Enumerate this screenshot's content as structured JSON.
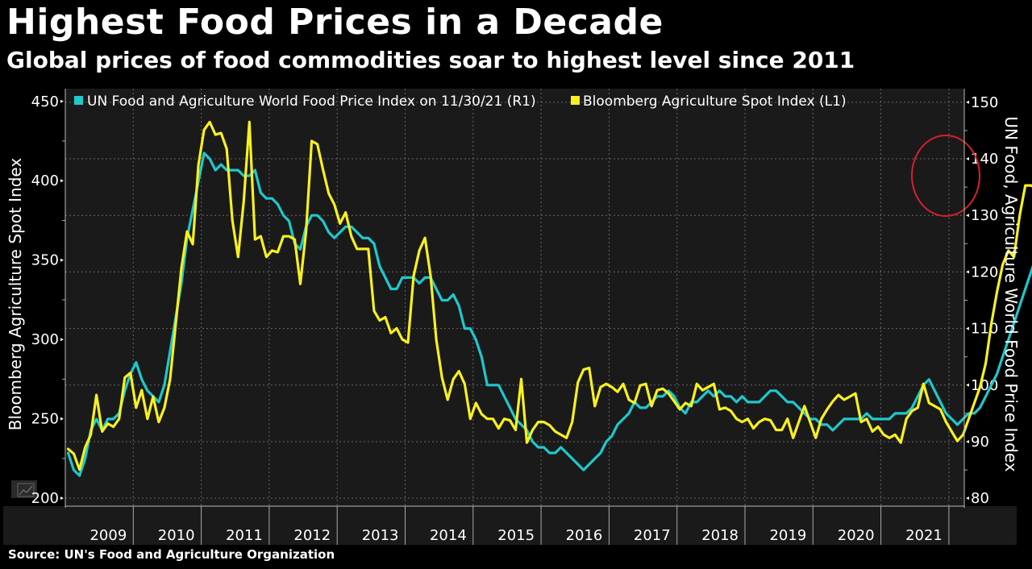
{
  "header": {
    "title": "Highest Food Prices in a Decade",
    "subtitle": "Global prices of food commodities soar to highest level since 2011"
  },
  "footer": {
    "source": "Source: UN's Food and Agriculture Organization"
  },
  "chart_data": {
    "type": "line",
    "title": "Highest Food Prices in a Decade",
    "subtitle": "Global prices of food commodities soar to highest level since 2011",
    "xlabel": "",
    "ylabel_left": "Bloomberg Agriculture Spot Index",
    "ylabel_right": "UN Food, Agriculture World Food Price Index",
    "ylim_left": [
      195,
      458
    ],
    "ylim_right": [
      78.6,
      152.4
    ],
    "yticks_left": [
      200,
      250,
      300,
      350,
      400,
      450
    ],
    "yticks_right": [
      80,
      90,
      100,
      110,
      120,
      130,
      140,
      150
    ],
    "x_categories": [
      "2009",
      "2010",
      "2011",
      "2012",
      "2013",
      "2014",
      "2015",
      "2016",
      "2017",
      "2018",
      "2019",
      "2020",
      "2021"
    ],
    "x_unit": "monthly, starting Jan 2009",
    "grid": true,
    "legend_position": "top-left",
    "annotation": "red circle highlighting late-2021 highs",
    "colors": {
      "un": "#1ec8cc",
      "bloomberg": "#f8f01e",
      "annotation": "#d8202a",
      "plot_bg": "#1a1a1a"
    },
    "series": [
      {
        "name": "UN Food and Agriculture World Food Price Index on 11/30/21 (R1)",
        "axis": "right",
        "values": [
          88,
          85,
          84,
          87,
          92,
          94,
          92,
          94,
          94,
          95,
          99,
          102,
          104,
          101,
          99,
          98,
          97,
          100,
          106,
          112,
          118,
          126,
          131,
          136,
          141,
          140,
          138,
          139,
          138,
          138,
          138,
          137,
          137,
          138,
          134,
          133,
          133,
          132,
          130,
          129,
          125,
          124,
          128,
          130,
          130,
          129,
          127,
          126,
          127,
          128,
          128,
          127,
          126,
          126,
          125,
          121,
          119,
          117,
          117,
          119,
          119,
          119,
          118,
          119,
          119,
          117,
          115,
          115,
          116,
          114,
          110,
          110,
          108,
          105,
          100,
          100,
          100,
          98,
          96,
          94,
          93,
          92,
          90,
          89,
          89,
          88,
          88,
          89,
          88,
          87,
          86,
          85,
          86,
          87,
          88,
          90,
          91,
          93,
          94,
          95,
          97,
          96,
          96,
          97,
          98,
          98,
          99,
          98,
          96,
          95,
          97,
          97,
          98,
          99,
          98,
          99,
          98,
          98,
          97,
          98,
          97,
          97,
          97,
          98,
          99,
          99,
          98,
          97,
          97,
          96,
          95,
          94,
          94,
          93,
          93,
          92,
          93,
          94,
          94,
          94,
          94,
          95,
          94,
          94,
          94,
          94,
          95,
          95,
          95,
          96,
          98,
          100,
          101,
          99,
          97,
          95,
          94,
          93,
          94,
          95,
          95,
          96,
          98,
          100,
          102,
          105,
          108,
          111,
          114,
          117,
          120,
          123,
          125,
          127,
          127,
          129,
          127,
          128,
          129,
          131,
          132,
          134,
          134,
          135
        ]
      },
      {
        "name": "Bloomberg Agriculture Spot Index (L1)",
        "axis": "left",
        "values": [
          231,
          228,
          218,
          232,
          240,
          265,
          242,
          247,
          245,
          250,
          276,
          279,
          257,
          268,
          250,
          264,
          248,
          257,
          275,
          310,
          345,
          368,
          360,
          410,
          432,
          437,
          429,
          430,
          420,
          375,
          352,
          387,
          437,
          363,
          365,
          352,
          356,
          355,
          365,
          365,
          363,
          335,
          368,
          425,
          423,
          407,
          392,
          385,
          373,
          380,
          365,
          357,
          357,
          357,
          318,
          312,
          314,
          304,
          307,
          300,
          298,
          340,
          356,
          364,
          340,
          300,
          276,
          262,
          275,
          280,
          272,
          250,
          260,
          253,
          250,
          250,
          244,
          250,
          249,
          243,
          275,
          235,
          243,
          248,
          248,
          246,
          242,
          240,
          238,
          248,
          273,
          281,
          282,
          258,
          270,
          272,
          270,
          267,
          272,
          262,
          260,
          271,
          272,
          258,
          268,
          269,
          266,
          261,
          256,
          260,
          258,
          272,
          268,
          270,
          272,
          256,
          257,
          255,
          250,
          248,
          250,
          244,
          248,
          250,
          249,
          243,
          243,
          250,
          238,
          248,
          258,
          248,
          238,
          250,
          256,
          261,
          265,
          262,
          264,
          266,
          248,
          250,
          242,
          245,
          240,
          238,
          240,
          235,
          250,
          255,
          257,
          272,
          260,
          258,
          256,
          248,
          242,
          236,
          240,
          250,
          260,
          270,
          285,
          310,
          330,
          347,
          356,
          352,
          378,
          397,
          397,
          395,
          385,
          382,
          380,
          381,
          380,
          390,
          393,
          402
        ]
      }
    ]
  }
}
